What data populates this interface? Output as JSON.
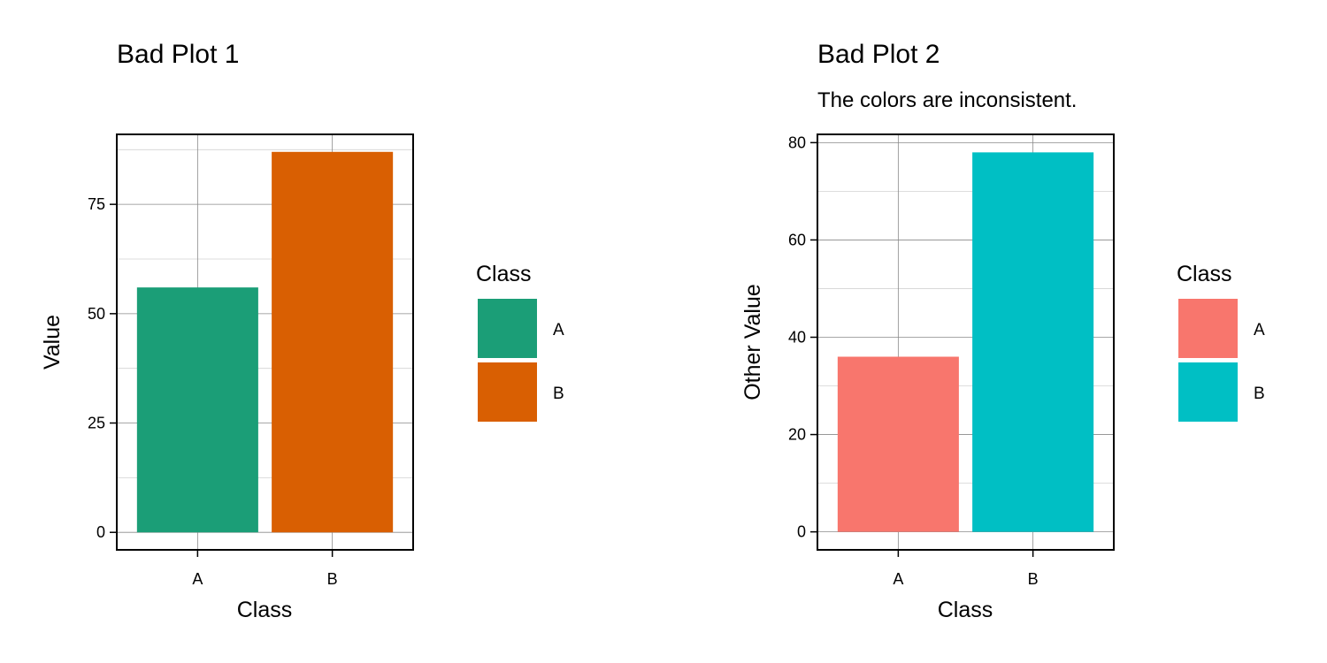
{
  "chart_data": [
    {
      "type": "bar",
      "title": "Bad Plot 1",
      "subtitle": "",
      "xlabel": "Class",
      "ylabel": "Value",
      "categories": [
        "A",
        "B"
      ],
      "values": [
        56,
        87
      ],
      "colors": [
        "#1B9E77",
        "#D95F02"
      ],
      "ylim": [
        -4,
        91
      ],
      "yticks": [
        0,
        25,
        50,
        75
      ],
      "ytick_labels": [
        "0",
        "25",
        "50",
        "75"
      ],
      "grid": true,
      "legend": {
        "title": "Class",
        "position": "right",
        "entries": [
          "A",
          "B"
        ]
      }
    },
    {
      "type": "bar",
      "title": "Bad Plot 2",
      "subtitle": "The colors are inconsistent.",
      "xlabel": "Class",
      "ylabel": "Other Value",
      "categories": [
        "A",
        "B"
      ],
      "values": [
        36,
        78
      ],
      "colors": [
        "#F8766D",
        "#00BFC4"
      ],
      "ylim": [
        -3.7,
        81.7
      ],
      "yticks": [
        0,
        20,
        40,
        60,
        80
      ],
      "ytick_labels": [
        "0",
        "20",
        "40",
        "60",
        "80"
      ],
      "grid": true,
      "legend": {
        "title": "Class",
        "position": "right",
        "entries": [
          "A",
          "B"
        ]
      }
    }
  ]
}
